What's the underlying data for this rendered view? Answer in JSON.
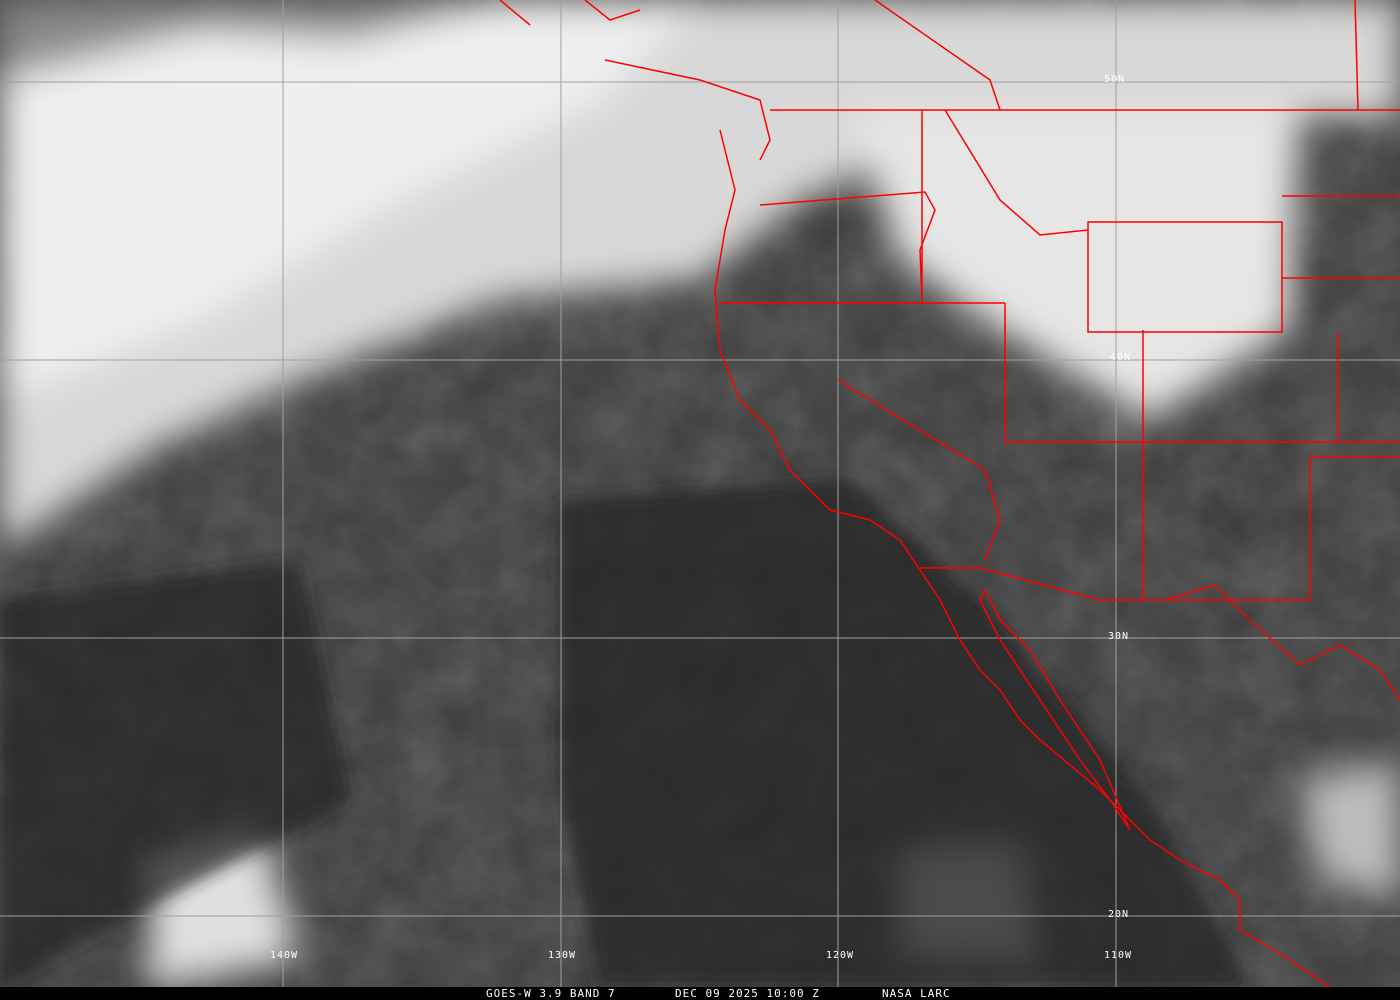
{
  "caption": {
    "satellite": "GOES-W 3.9 BAND 7",
    "datetime": "DEC 09 2025 10:00 Z",
    "source": "NASA LARC"
  },
  "grid": {
    "latitudes": [
      "50N",
      "40N",
      "30N",
      "20N"
    ],
    "longitudes": [
      "140W",
      "130W",
      "120W",
      "110W"
    ]
  },
  "colors": {
    "boundaries": "#ff0000",
    "gridlines": "#a0a0a0",
    "labels": "#ffffff"
  }
}
